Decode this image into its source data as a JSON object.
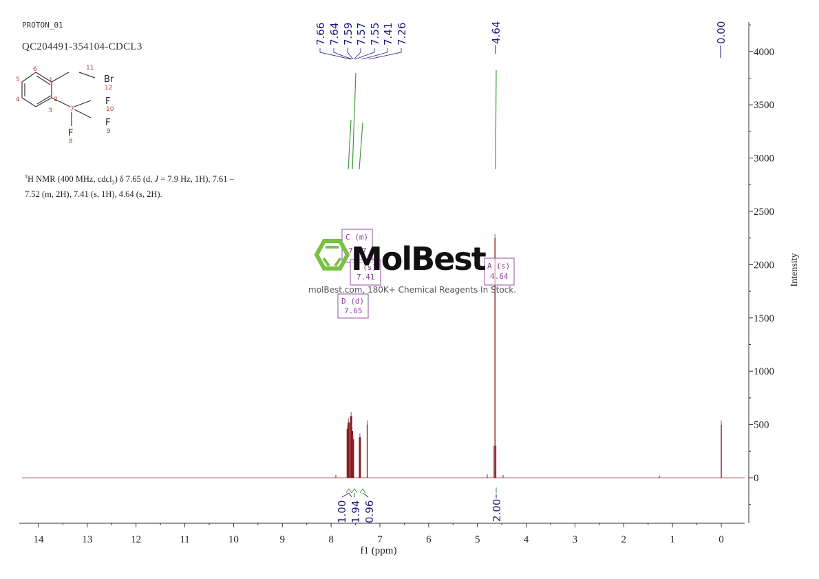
{
  "header": {
    "experiment": "PROTON_01",
    "sample_id": "QC204491-354104-CDCL3"
  },
  "structure": {
    "atoms": [
      {
        "label": "1",
        "type": "C"
      },
      {
        "label": "2",
        "type": "C"
      },
      {
        "label": "3",
        "type": "C"
      },
      {
        "label": "4",
        "type": "C"
      },
      {
        "label": "5",
        "type": "C"
      },
      {
        "label": "6",
        "type": "C"
      },
      {
        "label": "7",
        "type": "C"
      },
      {
        "label": "8",
        "type": "F"
      },
      {
        "label": "9",
        "type": "F"
      },
      {
        "label": "10",
        "type": "F"
      },
      {
        "label": "11",
        "type": "C"
      },
      {
        "label": "12",
        "type": "Br"
      }
    ],
    "symbols": {
      "br": "Br",
      "f": "F"
    }
  },
  "description": {
    "sup": "1",
    "line1_a": "H NMR (400 MHz, cdcl",
    "sub": "3",
    "line1_b": ") δ 7.65 (d, ",
    "j": "J",
    "line1_c": " = 7.9 Hz, 1H), 7.61 –",
    "line2": "7.52 (m, 2H), 7.41 (s, 1H), 4.64 (s, 2H)."
  },
  "watermark": {
    "brand": "MolBest",
    "tagline": "molBest.com, 180K+ Chemical Reagents In Stock."
  },
  "colors": {
    "spectrum": "#8b1a1a",
    "integral": "#3a9a3a",
    "peak_label": "#1a1a80",
    "multiplet_box": "#9a4aaa",
    "axis": "#333333",
    "logo_green": "#7ac143"
  },
  "chart_data": {
    "type": "line",
    "title": "",
    "xlabel": "f1 (ppm)",
    "ylabel": "Intensity",
    "xlim": [
      14.4,
      -0.5
    ],
    "ylim": [
      -400,
      4300
    ],
    "x_ticks": [
      "14",
      "13",
      "12",
      "11",
      "10",
      "9",
      "8",
      "7",
      "6",
      "5",
      "4",
      "3",
      "2",
      "1",
      "0"
    ],
    "y_ticks": [
      "0",
      "500",
      "1000",
      "1500",
      "2000",
      "2500",
      "3000",
      "3500",
      "4000"
    ],
    "peak_labels": [
      "7.66",
      "7.64",
      "7.59",
      "7.57",
      "7.55",
      "7.41",
      "7.26",
      "4.64",
      "0.00"
    ],
    "peaks": [
      {
        "ppm": 7.66,
        "intensity": 460
      },
      {
        "ppm": 7.64,
        "intensity": 520
      },
      {
        "ppm": 7.59,
        "intensity": 580
      },
      {
        "ppm": 7.57,
        "intensity": 440
      },
      {
        "ppm": 7.55,
        "intensity": 360
      },
      {
        "ppm": 7.41,
        "intensity": 380
      },
      {
        "ppm": 7.26,
        "intensity": 500
      },
      {
        "ppm": 4.64,
        "intensity": 2250
      },
      {
        "ppm": 0.0,
        "intensity": 500
      }
    ],
    "multiplets": [
      {
        "id": "A",
        "type": "s",
        "shift": "4.64"
      },
      {
        "id": "B",
        "type": "s",
        "shift": "7.41"
      },
      {
        "id": "C",
        "type": "m",
        "shift": "7.57"
      },
      {
        "id": "D",
        "type": "d",
        "shift": "7.65"
      }
    ],
    "integrals": [
      {
        "value": "1.00",
        "ppm": 7.65
      },
      {
        "value": "1.94",
        "ppm": 7.57
      },
      {
        "value": "0.96",
        "ppm": 7.41
      },
      {
        "value": "2.00",
        "ppm": 4.64
      }
    ],
    "legend": "none",
    "grid": false
  }
}
